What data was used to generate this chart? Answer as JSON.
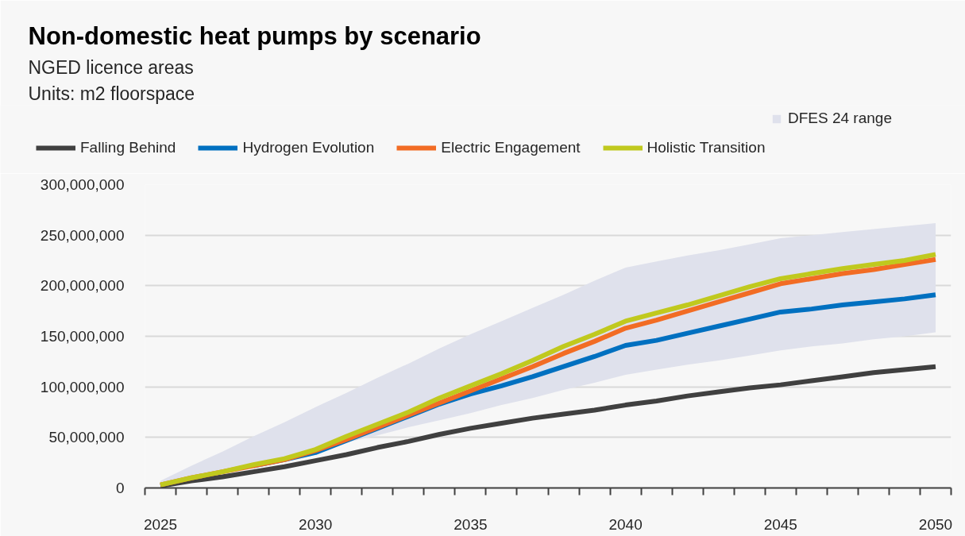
{
  "chart_data": {
    "type": "line",
    "title": "Non-domestic heat pumps by scenario",
    "subtitle": "NGED licence areas",
    "annotations": [
      "Units: m2 floorspace"
    ],
    "categories": [
      "2025",
      null,
      null,
      null,
      null,
      "2030",
      null,
      null,
      null,
      null,
      "2035",
      null,
      null,
      null,
      null,
      "2040",
      null,
      null,
      null,
      null,
      "2045",
      null,
      null,
      null,
      null,
      "2050"
    ],
    "series": [
      {
        "name": "DFES 24 range",
        "color": "#dfe1ec",
        "values": [
          null,
          null,
          null,
          null,
          null,
          null,
          null,
          null,
          null,
          null,
          null,
          null,
          null,
          null,
          null,
          null,
          null,
          null,
          null,
          null,
          null,
          null,
          null,
          null,
          null,
          null
        ],
        "lower": [
          1000000,
          8000000,
          16000000,
          23000000,
          31000000,
          38000000,
          45000000,
          52000000,
          60000000,
          67000000,
          74000000,
          82000000,
          89000000,
          97000000,
          104000000,
          112000000,
          117000000,
          122000000,
          126000000,
          131000000,
          136000000,
          140000000,
          143000000,
          147000000,
          150000000,
          154000000
        ],
        "upper": [
          7000000,
          22000000,
          36000000,
          51000000,
          65000000,
          80000000,
          94000000,
          109000000,
          123000000,
          138000000,
          152000000,
          165000000,
          178000000,
          191000000,
          205000000,
          218000000,
          224000000,
          230000000,
          235000000,
          241000000,
          247000000,
          250000000,
          253000000,
          256000000,
          259000000,
          262000000
        ]
      },
      {
        "name": "Falling Behind",
        "color": "#404040",
        "values": [
          2000000,
          7000000,
          11000000,
          16000000,
          21000000,
          27000000,
          33000000,
          40000000,
          46000000,
          53000000,
          59000000,
          64000000,
          69000000,
          73000000,
          77000000,
          82000000,
          86000000,
          91000000,
          95000000,
          99000000,
          102000000,
          106000000,
          110000000,
          114000000,
          117000000,
          120000000
        ]
      },
      {
        "name": "Hydrogen Evolution",
        "color": "#0070c0",
        "values": [
          null,
          null,
          null,
          22000000,
          28000000,
          35000000,
          47000000,
          59000000,
          71000000,
          83000000,
          93000000,
          101000000,
          110000000,
          120000000,
          130000000,
          141000000,
          146000000,
          153000000,
          160000000,
          167000000,
          174000000,
          177000000,
          181000000,
          184000000,
          187000000,
          191000000
        ]
      },
      {
        "name": "Electric Engagement",
        "color": "#f26c24",
        "values": [
          3000000,
          10000000,
          16000000,
          22000000,
          28000000,
          37000000,
          48000000,
          60000000,
          72000000,
          84000000,
          96000000,
          108000000,
          120000000,
          133000000,
          145000000,
          158000000,
          166000000,
          175000000,
          184000000,
          193000000,
          202000000,
          207000000,
          212000000,
          216000000,
          221000000,
          226000000
        ]
      },
      {
        "name": "Holistic Transition",
        "color": "#c0c91e",
        "values": [
          3000000,
          10000000,
          16000000,
          23000000,
          29000000,
          38000000,
          51000000,
          63000000,
          75000000,
          89000000,
          101000000,
          113000000,
          126000000,
          140000000,
          152000000,
          165000000,
          173000000,
          181000000,
          190000000,
          199000000,
          207000000,
          212000000,
          217000000,
          221000000,
          225000000,
          231000000
        ]
      }
    ],
    "ylim": [
      0,
      300000000
    ],
    "yticks": [
      {
        "value": 0,
        "label": "0"
      },
      {
        "value": 50000000,
        "label": "50,000,000"
      },
      {
        "value": 100000000,
        "label": "100,000,000"
      },
      {
        "value": 150000000,
        "label": "150,000,000"
      },
      {
        "value": 200000000,
        "label": "200,000,000"
      },
      {
        "value": 250000000,
        "label": "250,000,000"
      },
      {
        "value": 300000000,
        "label": "300,000,000"
      }
    ],
    "grid": "y",
    "legend": "top"
  }
}
